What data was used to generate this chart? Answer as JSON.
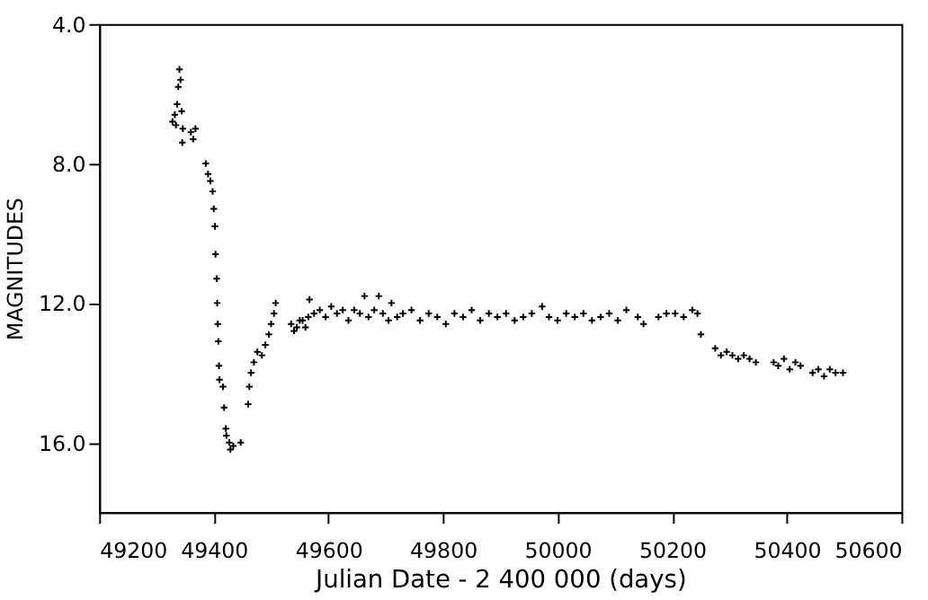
{
  "chart_data": {
    "type": "scatter",
    "xlabel": "Julian Date - 2 400 000 (days)",
    "ylabel": "MAGNITUDES",
    "x": [
      49328,
      49332,
      49334,
      49336,
      49338,
      49340,
      49342,
      49344,
      49346,
      49345,
      49360,
      49364,
      49368,
      49386,
      49390,
      49394,
      49398,
      49400,
      49402,
      49403,
      49405,
      49406,
      49407,
      49408,
      49409,
      49410,
      49416,
      49418,
      49421,
      49422,
      49427,
      49429,
      49434,
      49447,
      49460,
      49462,
      49465,
      49470,
      49476,
      49484,
      49490,
      49496,
      49500,
      49505,
      49508,
      49535,
      49540,
      49545,
      49550,
      49555,
      49560,
      49565,
      49567,
      49575,
      49585,
      49595,
      49605,
      49615,
      49625,
      49635,
      49645,
      49655,
      49663,
      49670,
      49680,
      49688,
      49695,
      49705,
      49710,
      49720,
      49730,
      49745,
      49760,
      49775,
      49790,
      49805,
      49820,
      49835,
      49850,
      49865,
      49880,
      49895,
      49910,
      49925,
      49940,
      49955,
      49973,
      49985,
      50000,
      50015,
      50030,
      50045,
      50060,
      50075,
      50090,
      50105,
      50120,
      50140,
      50150,
      50176,
      50190,
      50205,
      50220,
      50235,
      50244,
      50250,
      50275,
      50285,
      50295,
      50305,
      50315,
      50325,
      50335,
      50346,
      50377,
      50385,
      50395,
      50405,
      50415,
      50424,
      50445,
      50455,
      50465,
      50475,
      50485,
      50498
    ],
    "series": [
      {
        "color": "#000000",
        "values": [
          6.8,
          6.6,
          6.9,
          6.3,
          5.8,
          5.3,
          5.6,
          6.5,
          7.0,
          7.4,
          7.1,
          7.3,
          7.0,
          8.0,
          8.3,
          8.5,
          8.8,
          9.3,
          9.8,
          10.6,
          11.3,
          12.0,
          12.6,
          13.1,
          13.8,
          14.2,
          14.4,
          15.0,
          15.6,
          15.8,
          16.0,
          16.2,
          16.1,
          16.0,
          14.9,
          14.4,
          14.0,
          13.7,
          13.4,
          13.5,
          13.2,
          12.9,
          12.6,
          12.3,
          12.0,
          12.6,
          12.8,
          12.7,
          12.5,
          12.5,
          12.7,
          12.4,
          11.9,
          12.3,
          12.2,
          12.4,
          12.1,
          12.3,
          12.2,
          12.5,
          12.2,
          12.3,
          11.8,
          12.4,
          12.2,
          11.8,
          12.3,
          12.5,
          12.0,
          12.4,
          12.3,
          12.2,
          12.5,
          12.3,
          12.4,
          12.6,
          12.3,
          12.4,
          12.2,
          12.5,
          12.3,
          12.4,
          12.3,
          12.5,
          12.4,
          12.3,
          12.1,
          12.4,
          12.5,
          12.3,
          12.4,
          12.3,
          12.5,
          12.4,
          12.3,
          12.5,
          12.2,
          12.4,
          12.6,
          12.4,
          12.3,
          12.3,
          12.4,
          12.2,
          12.3,
          12.9,
          13.3,
          13.5,
          13.4,
          13.5,
          13.6,
          13.5,
          13.6,
          13.7,
          13.7,
          13.8,
          13.6,
          13.9,
          13.7,
          13.8,
          14.0,
          13.9,
          14.1,
          13.9,
          14.0,
          14.0
        ]
      }
    ],
    "xlim": [
      49200,
      50600
    ],
    "xticks": [
      49200,
      49400,
      49600,
      49800,
      50000,
      50200,
      50400,
      50600
    ],
    "ylim": [
      18,
      4
    ],
    "yticks": [
      {
        "value": 4,
        "label": "4.0"
      },
      {
        "value": 8,
        "label": "8.0"
      },
      {
        "value": 12,
        "label": "12.0"
      },
      {
        "value": 16,
        "label": "16.0"
      }
    ],
    "marker": "cross",
    "grid": false,
    "legend": false
  }
}
